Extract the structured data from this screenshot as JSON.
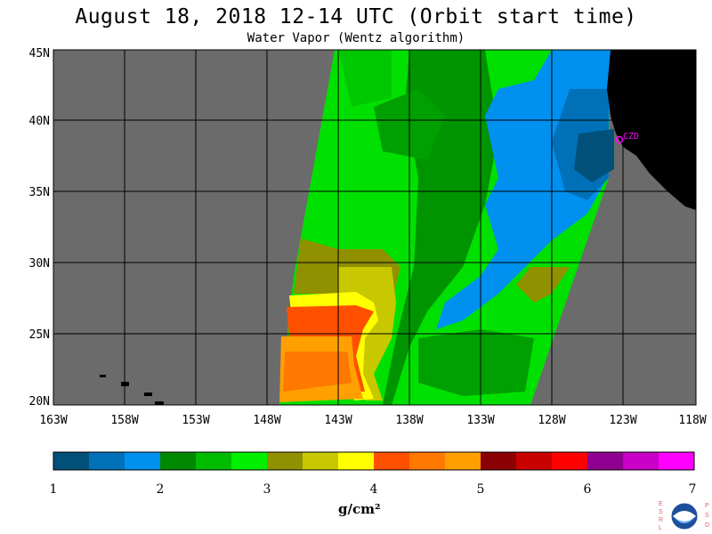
{
  "title": "August 18, 2018  12-14 UTC  (Orbit start time)",
  "subtitle": "Water Vapor (Wentz algorithm)",
  "lat_labels": [
    "45N",
    "40N",
    "35N",
    "30N",
    "25N",
    "20N"
  ],
  "lon_labels": [
    "163W",
    "158W",
    "153W",
    "148W",
    "143W",
    "138W",
    "133W",
    "128W",
    "123W",
    "118W"
  ],
  "station_label": "CZD",
  "colorbar": {
    "tick_labels": [
      "1",
      "2",
      "3",
      "4",
      "5",
      "6",
      "7"
    ],
    "units": "g/cm²",
    "colors": [
      "#00507a",
      "#0070b8",
      "#0090f0",
      "#008800",
      "#00bb00",
      "#00f000",
      "#909000",
      "#c8c800",
      "#ffff00",
      "#ff5000",
      "#ff7800",
      "#ffa000",
      "#8b0000",
      "#c80000",
      "#ff0000",
      "#900090",
      "#c800c8",
      "#ff00ff"
    ]
  },
  "colors": {
    "background": "#6b6b6b",
    "land": "#000000",
    "grid": "#000000",
    "station": "#ff00ff"
  },
  "logo": {
    "left_letters": "ESRL",
    "right_letters": "PSD",
    "emblem": "noaa-logo"
  }
}
